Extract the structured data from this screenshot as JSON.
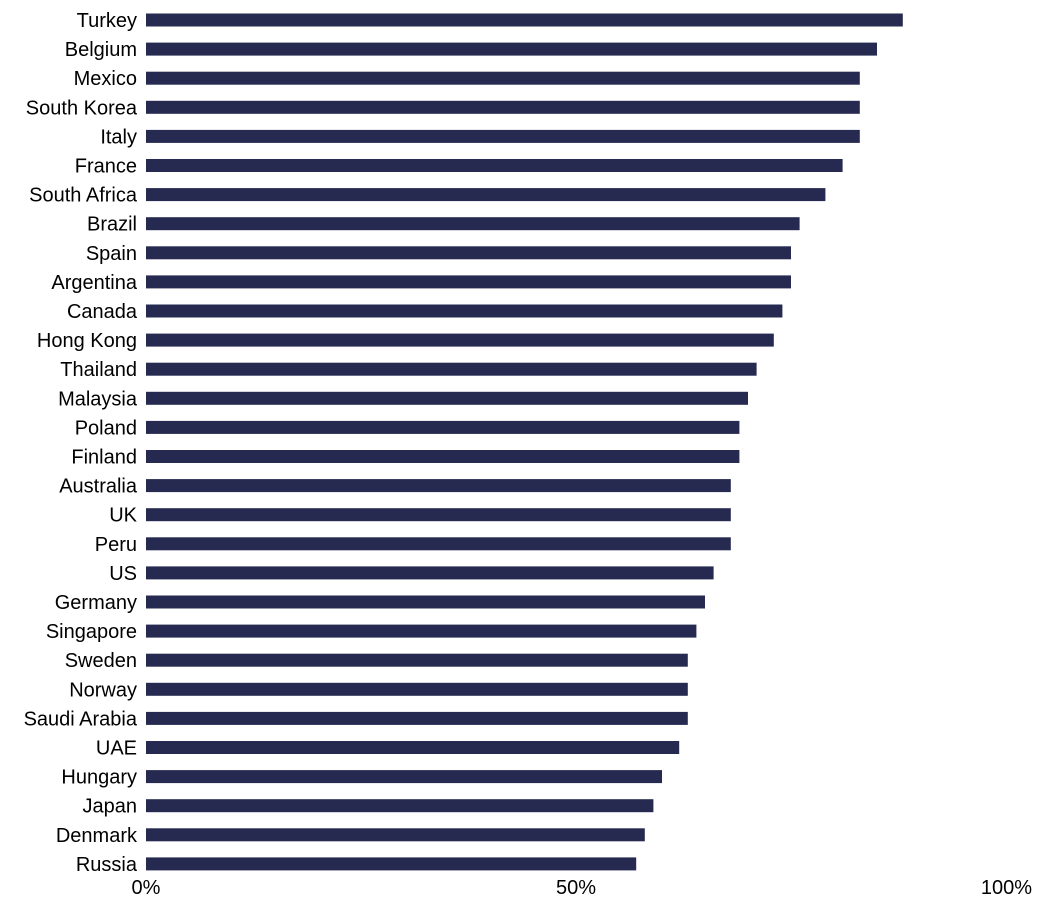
{
  "colors": {
    "bar": "#262a50",
    "text": "#000000",
    "background": "#ffffff"
  },
  "chart_data": {
    "type": "bar",
    "orientation": "horizontal",
    "categories": [
      "Turkey",
      "Belgium",
      "Mexico",
      "South Korea",
      "Italy",
      "France",
      "South Africa",
      "Brazil",
      "Spain",
      "Argentina",
      "Canada",
      "Hong Kong",
      "Thailand",
      "Malaysia",
      "Poland",
      "Finland",
      "Australia",
      "UK",
      "Peru",
      "US",
      "Germany",
      "Singapore",
      "Sweden",
      "Norway",
      "Saudi Arabia",
      "UAE",
      "Hungary",
      "Japan",
      "Denmark",
      "Russia"
    ],
    "values": [
      88,
      85,
      83,
      83,
      83,
      81,
      79,
      76,
      75,
      75,
      74,
      73,
      71,
      70,
      69,
      69,
      68,
      68,
      68,
      66,
      65,
      64,
      63,
      63,
      63,
      62,
      60,
      59,
      58,
      57
    ],
    "xlim": [
      0,
      100
    ],
    "xticks": [
      {
        "value": 0,
        "label": "0%"
      },
      {
        "value": 50,
        "label": "50%"
      },
      {
        "value": 100,
        "label": "100%"
      }
    ],
    "grid": false,
    "legend": "none",
    "title": "",
    "xlabel": "",
    "ylabel": ""
  }
}
